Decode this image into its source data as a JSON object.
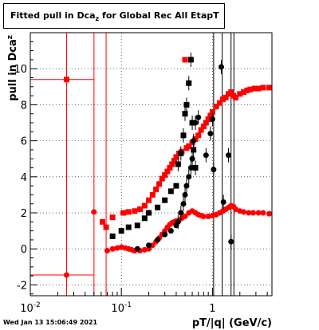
{
  "header": {
    "title_prefix": "Fitted pull in Dca",
    "title_sub": "z",
    "title_suffix": " for Global Rec All EtapT"
  },
  "footer": {
    "timestamp": "Wed Jan 13 15:06:49 2021"
  },
  "colors": {
    "series_red": "#ff0000",
    "series_black": "#000000",
    "frame": "#000000"
  },
  "chart_data": {
    "type": "scatter",
    "title": "Fitted pull in Dcaz for Global Rec All EtapT",
    "xlabel": "pT/|q| (GeV/c)",
    "ylabel_prefix": "pull in Dca",
    "ylabel_sub": "z",
    "xscale": "log",
    "xlim": [
      0.01,
      4.5
    ],
    "ylim": [
      -2.6,
      12.0
    ],
    "grid": true,
    "x_tick_labels": [
      {
        "v": 0.01,
        "base": "10",
        "exp": "-2"
      },
      {
        "v": 0.1,
        "base": "10",
        "exp": "-1"
      },
      {
        "v": 1,
        "base": "1",
        "exp": ""
      }
    ],
    "y_ticks": [
      -2,
      0,
      2,
      4,
      6,
      8,
      10
    ],
    "vlines_red": [
      0.05,
      0.068
    ],
    "vlines_black": [
      1.03,
      1.28,
      1.6,
      1.72
    ],
    "series": [
      {
        "key": "red-sigma",
        "marker": "square",
        "points": [
          [
            0.025,
            9.4
          ],
          [
            0.062,
            1.5
          ],
          [
            0.068,
            1.2
          ],
          [
            0.08,
            1.75
          ],
          [
            0.105,
            2.0
          ],
          [
            0.12,
            2.05
          ],
          [
            0.14,
            2.1
          ],
          [
            0.16,
            2.2
          ],
          [
            0.18,
            2.4
          ],
          [
            0.2,
            2.7
          ],
          [
            0.22,
            3.0
          ],
          [
            0.24,
            3.3
          ],
          [
            0.26,
            3.6
          ],
          [
            0.28,
            3.9
          ],
          [
            0.3,
            4.1
          ],
          [
            0.32,
            4.3
          ],
          [
            0.34,
            4.5
          ],
          [
            0.36,
            4.7
          ],
          [
            0.38,
            4.9
          ],
          [
            0.4,
            5.1
          ],
          [
            0.43,
            5.3
          ],
          [
            0.46,
            5.4
          ],
          [
            0.5,
            10.5
          ],
          [
            0.52,
            5.6
          ],
          [
            0.55,
            5.7
          ],
          [
            0.6,
            5.9
          ],
          [
            0.65,
            6.1
          ],
          [
            0.7,
            6.3
          ],
          [
            0.75,
            6.6
          ],
          [
            0.8,
            6.8
          ],
          [
            0.85,
            7.0
          ],
          [
            0.9,
            7.2
          ],
          [
            0.95,
            7.4
          ],
          [
            1.0,
            7.6
          ],
          [
            1.1,
            7.9
          ],
          [
            1.2,
            8.1
          ],
          [
            1.3,
            8.3
          ],
          [
            1.4,
            8.4
          ],
          [
            1.5,
            8.6
          ],
          [
            1.6,
            8.7
          ],
          [
            1.7,
            8.5
          ],
          [
            1.8,
            8.4
          ],
          [
            2.0,
            8.6
          ],
          [
            2.2,
            8.7
          ],
          [
            2.4,
            8.8
          ],
          [
            2.6,
            8.85
          ],
          [
            2.9,
            8.9
          ],
          [
            3.2,
            8.9
          ],
          [
            3.6,
            8.95
          ],
          [
            4.2,
            8.95
          ]
        ]
      },
      {
        "key": "red-mean",
        "marker": "circle",
        "points": [
          [
            0.025,
            -1.45
          ],
          [
            0.05,
            2.05
          ],
          [
            0.07,
            -0.1
          ],
          [
            0.08,
            0.0
          ],
          [
            0.09,
            0.05
          ],
          [
            0.1,
            0.1
          ],
          [
            0.11,
            0.05
          ],
          [
            0.12,
            0.0
          ],
          [
            0.13,
            -0.05
          ],
          [
            0.14,
            -0.1
          ],
          [
            0.16,
            -0.1
          ],
          [
            0.18,
            -0.05
          ],
          [
            0.2,
            0.0
          ],
          [
            0.22,
            0.2
          ],
          [
            0.24,
            0.4
          ],
          [
            0.26,
            0.6
          ],
          [
            0.28,
            0.8
          ],
          [
            0.3,
            1.0
          ],
          [
            0.32,
            1.2
          ],
          [
            0.34,
            1.35
          ],
          [
            0.36,
            1.45
          ],
          [
            0.38,
            1.5
          ],
          [
            0.4,
            1.55
          ],
          [
            0.43,
            1.6
          ],
          [
            0.46,
            1.7
          ],
          [
            0.5,
            1.8
          ],
          [
            0.55,
            2.0
          ],
          [
            0.6,
            2.1
          ],
          [
            0.65,
            2.0
          ],
          [
            0.7,
            1.9
          ],
          [
            0.75,
            1.85
          ],
          [
            0.8,
            1.8
          ],
          [
            0.9,
            1.8
          ],
          [
            1.0,
            1.85
          ],
          [
            1.1,
            1.9
          ],
          [
            1.2,
            2.0
          ],
          [
            1.3,
            2.1
          ],
          [
            1.4,
            2.2
          ],
          [
            1.5,
            2.3
          ],
          [
            1.6,
            2.4
          ],
          [
            1.7,
            2.35
          ],
          [
            1.8,
            2.2
          ],
          [
            2.0,
            2.1
          ],
          [
            2.2,
            2.05
          ],
          [
            2.5,
            2.0
          ],
          [
            2.8,
            2.0
          ],
          [
            3.2,
            2.0
          ],
          [
            3.6,
            2.0
          ],
          [
            4.2,
            1.95
          ]
        ]
      },
      {
        "key": "black-sigma",
        "marker": "square",
        "points": [
          [
            0.08,
            0.7
          ],
          [
            0.1,
            1.0
          ],
          [
            0.12,
            1.2
          ],
          [
            0.15,
            1.3
          ],
          [
            0.18,
            1.7
          ],
          [
            0.2,
            2.0
          ],
          [
            0.25,
            2.3
          ],
          [
            0.3,
            2.7
          ],
          [
            0.35,
            3.2
          ],
          [
            0.4,
            3.5
          ],
          [
            0.42,
            4.7
          ],
          [
            0.45,
            5.3
          ],
          [
            0.48,
            6.3
          ],
          [
            0.5,
            7.5
          ],
          [
            0.52,
            8.0
          ],
          [
            0.55,
            9.2
          ],
          [
            0.58,
            10.5
          ],
          [
            0.6,
            7.0
          ],
          [
            0.62,
            5.5
          ],
          [
            0.65,
            4.5
          ]
        ]
      },
      {
        "key": "black-mean",
        "marker": "circle",
        "points": [
          [
            0.15,
            0.0
          ],
          [
            0.2,
            0.2
          ],
          [
            0.25,
            0.5
          ],
          [
            0.3,
            0.8
          ],
          [
            0.35,
            1.0
          ],
          [
            0.4,
            1.3
          ],
          [
            0.42,
            1.5
          ],
          [
            0.45,
            2.0
          ],
          [
            0.48,
            2.5
          ],
          [
            0.5,
            3.0
          ],
          [
            0.52,
            3.5
          ],
          [
            0.55,
            4.0
          ],
          [
            0.58,
            4.5
          ],
          [
            0.6,
            5.0
          ],
          [
            0.62,
            6.0
          ],
          [
            0.65,
            7.0
          ],
          [
            0.7,
            7.3
          ],
          [
            0.85,
            5.2
          ],
          [
            0.95,
            6.4
          ],
          [
            1.0,
            7.2
          ],
          [
            1.03,
            4.4
          ],
          [
            1.25,
            10.1
          ],
          [
            1.32,
            2.6
          ],
          [
            1.5,
            5.2
          ],
          [
            1.6,
            0.4
          ]
        ]
      }
    ]
  }
}
